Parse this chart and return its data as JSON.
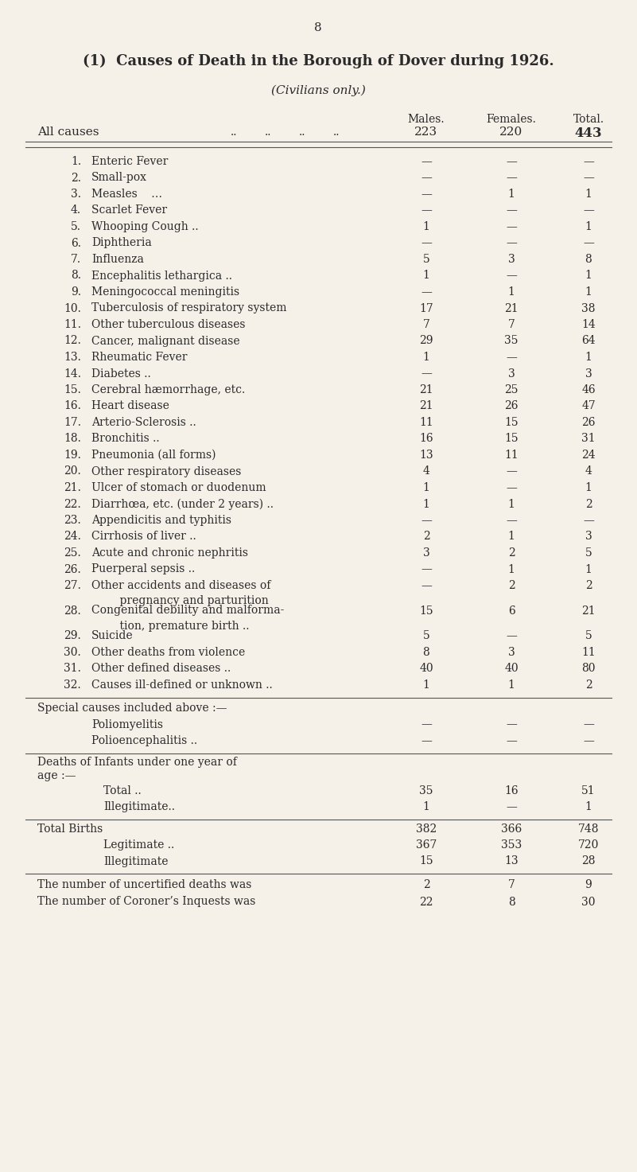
{
  "page_number": "8",
  "title": "(1)  Causes of Death in the Borough of Dover during 1926.",
  "subtitle": "(Civilians only.)",
  "bg_color": "#f5f0e8",
  "text_color": "#2a2a2a",
  "header_cols": [
    "Males.",
    "Females.",
    "Total."
  ],
  "all_causes_label": "All causes",
  "all_causes_dots": "..   ..   ..   ..",
  "all_causes_values": [
    "223",
    "220",
    "443"
  ],
  "rows": [
    {
      "num": "1.",
      "label": "Enteric Fever",
      "dots": "..   ..   ..",
      "m": "—",
      "f": "—",
      "t": "—"
    },
    {
      "num": "2.",
      "label": "Small-pox",
      "dots": "..   ..   ..",
      "m": "—",
      "f": "—",
      "t": "—"
    },
    {
      "num": "3.",
      "label": "Measles    …",
      "dots": "..   ..",
      "m": "—",
      "f": "1",
      "t": "1"
    },
    {
      "num": "4.",
      "label": "Scarlet Fever",
      "dots": "..   ..   ..",
      "m": "—",
      "f": "—",
      "t": "—"
    },
    {
      "num": "5.",
      "label": "Whooping Cough ..",
      "dots": "..   ...",
      "m": "1",
      "f": "—",
      "t": "1"
    },
    {
      "num": "6.",
      "label": "Diphtheria",
      "dots": "..   ..   ..",
      "m": "—",
      "f": "—",
      "t": "—"
    },
    {
      "num": "7.",
      "label": "Influenza",
      "dots": "..   ..   ..",
      "m": "5",
      "f": "3",
      "t": "8"
    },
    {
      "num": "8.",
      "label": "Encephalitis lethargica ..",
      "dots": "..",
      "m": "1",
      "f": "—",
      "t": "1"
    },
    {
      "num": "9.",
      "label": "Meningococcal meningitis",
      "dots": "..",
      "m": "—",
      "f": "1",
      "t": "1"
    },
    {
      "num": "10.",
      "label": "Tuberculosis of respiratory system",
      "dots": "",
      "m": "17",
      "f": "21",
      "t": "38"
    },
    {
      "num": "11.",
      "label": "Other tuberculous diseases",
      "dots": "..",
      "m": "7",
      "f": "7",
      "t": "14"
    },
    {
      "num": "12.",
      "label": "Cancer, malignant disease",
      "dots": "..",
      "m": "29",
      "f": "35",
      "t": "64"
    },
    {
      "num": "13.",
      "label": "Rheumatic Fever",
      "dots": "..   ..",
      "m": "1",
      "f": "—",
      "t": "1"
    },
    {
      "num": "14.",
      "label": "Diabetes ..",
      "dots": "..   ..   ..",
      "m": "—",
      "f": "3",
      "t": "3"
    },
    {
      "num": "15.",
      "label": "Cerebral hæmorrhage, etc.",
      "dots": "..",
      "m": "21",
      "f": "25",
      "t": "46"
    },
    {
      "num": "16.",
      "label": "Heart disease",
      "dots": "..   ..   ..",
      "m": "21",
      "f": "26",
      "t": "47"
    },
    {
      "num": "17.",
      "label": "Arterio-Sclerosis ..",
      "dots": "...   ..",
      "m": "11",
      "f": "15",
      "t": "26"
    },
    {
      "num": "18.",
      "label": "Bronchitis ..",
      "dots": "..   ..   ..",
      "m": "16",
      "f": "15",
      "t": "31"
    },
    {
      "num": "19.",
      "label": "Pneumonia (all forms)",
      "dots": "..   ..",
      "m": "13",
      "f": "11",
      "t": "24"
    },
    {
      "num": "20.",
      "label": "Other respiratory diseases",
      "dots": "..",
      "m": "4",
      "f": "—",
      "t": "4"
    },
    {
      "num": "21.",
      "label": "Ulcer of stomach or duodenum",
      "dots": "",
      "m": "1",
      "f": "—",
      "t": "1"
    },
    {
      "num": "22.",
      "label": "Diarrhœa, etc. (under 2 years) ..",
      "dots": "",
      "m": "1",
      "f": "1",
      "t": "2"
    },
    {
      "num": "23.",
      "label": "Appendicitis and typhitis",
      "dots": "..",
      "m": "—",
      "f": "—",
      "t": "—"
    },
    {
      "num": "24.",
      "label": "Cirrhosis of liver ..",
      "dots": "..   ..",
      "m": "2",
      "f": "1",
      "t": "3"
    },
    {
      "num": "25.",
      "label": "Acute and chronic nephritis",
      "dots": "..",
      "m": "3",
      "f": "2",
      "t": "5"
    },
    {
      "num": "26.",
      "label": "Puerperal sepsis ..",
      "dots": "..   ..",
      "m": "—",
      "f": "1",
      "t": "1"
    },
    {
      "num": "27.",
      "label": "Other accidents and diseases of",
      "label2": "    pregnancy and parturition",
      "dots": "..",
      "m": "—",
      "f": "2",
      "t": "2"
    },
    {
      "num": "28.",
      "label": "Congenital debility and malforma-",
      "label2": "    tion, premature birth ..",
      "dots": "..",
      "m": "15",
      "f": "6",
      "t": "21"
    },
    {
      "num": "29.",
      "label": "Suicide",
      "dots": "..   ..   ..   ..",
      "m": "5",
      "f": "—",
      "t": "5"
    },
    {
      "num": "30.",
      "label": "Other deaths from violence",
      "dots": "..",
      "m": "8",
      "f": "3",
      "t": "11"
    },
    {
      "num": "31.",
      "label": "Other defined diseases ..",
      "dots": "..",
      "m": "40",
      "f": "40",
      "t": "80"
    },
    {
      "num": "32.",
      "label": "Causes ill-defined or unknown ..",
      "dots": "",
      "m": "1",
      "f": "1",
      "t": "2"
    }
  ],
  "special_section_title": "Special causes included above :—",
  "special_rows": [
    {
      "label": "Poliomyelitis",
      "dots": "..   ..   ..",
      "m": "—",
      "f": "—",
      "t": "—"
    },
    {
      "label": "Polioencephalitis ..",
      "dots": "...   ..",
      "m": "—",
      "f": "—",
      "t": "—"
    }
  ],
  "infants_rows": [
    {
      "label": "Total ..",
      "dots": "..   ..   ..",
      "m": "35",
      "f": "16",
      "t": "51"
    },
    {
      "label": "Illegitimate..",
      "dots": "..   ..   ..",
      "m": "1",
      "f": "—",
      "t": "1"
    }
  ],
  "births_values": [
    "382",
    "366",
    "748"
  ],
  "births_rows": [
    {
      "label": "Legitimate ..",
      "dots": "..   ..   ..",
      "m": "367",
      "f": "353",
      "t": "720"
    },
    {
      "label": "Illegitimate",
      "dots": "..   ..   ..",
      "m": "15",
      "f": "13",
      "t": "28"
    }
  ],
  "footer_rows": [
    {
      "label": "The number of uncertified deaths was",
      "m": "2",
      "f": "7",
      "t": "9"
    },
    {
      "label": "The number of Coroner’s Inquests was",
      "m": "22",
      "f": "8",
      "t": "30"
    }
  ]
}
